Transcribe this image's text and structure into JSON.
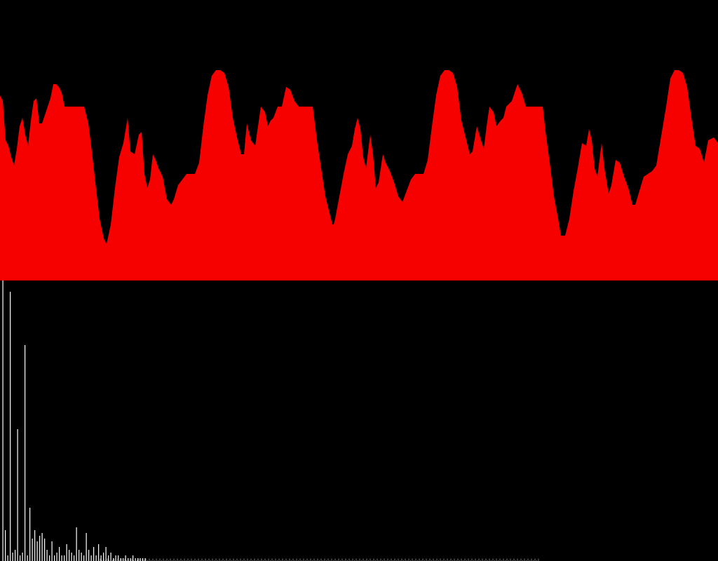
{
  "colors": {
    "background": "#000000",
    "waveform_fill": "#f70000",
    "spectrum_bars": "#ffffff"
  },
  "chart_data": [
    {
      "type": "area",
      "ylim": [
        0,
        1
      ],
      "grid": false,
      "points": [
        [
          0,
          0.66
        ],
        [
          4,
          0.64
        ],
        [
          8,
          0.5
        ],
        [
          12,
          0.48
        ],
        [
          16,
          0.44
        ],
        [
          20,
          0.41
        ],
        [
          24,
          0.47
        ],
        [
          28,
          0.55
        ],
        [
          32,
          0.58
        ],
        [
          36,
          0.52
        ],
        [
          40,
          0.48
        ],
        [
          44,
          0.57
        ],
        [
          48,
          0.64
        ],
        [
          52,
          0.65
        ],
        [
          56,
          0.56
        ],
        [
          60,
          0.56
        ],
        [
          64,
          0.59
        ],
        [
          68,
          0.62
        ],
        [
          72,
          0.65
        ],
        [
          76,
          0.7
        ],
        [
          80,
          0.7
        ],
        [
          84,
          0.69
        ],
        [
          88,
          0.67
        ],
        [
          92,
          0.62
        ],
        [
          100,
          0.62
        ],
        [
          110,
          0.62
        ],
        [
          120,
          0.62
        ],
        [
          126,
          0.56
        ],
        [
          130,
          0.48
        ],
        [
          136,
          0.35
        ],
        [
          142,
          0.22
        ],
        [
          148,
          0.15
        ],
        [
          152,
          0.13
        ],
        [
          158,
          0.2
        ],
        [
          164,
          0.33
        ],
        [
          170,
          0.44
        ],
        [
          176,
          0.49
        ],
        [
          182,
          0.58
        ],
        [
          186,
          0.46
        ],
        [
          192,
          0.45
        ],
        [
          198,
          0.52
        ],
        [
          202,
          0.53
        ],
        [
          206,
          0.38
        ],
        [
          210,
          0.33
        ],
        [
          214,
          0.36
        ],
        [
          218,
          0.45
        ],
        [
          222,
          0.43
        ],
        [
          226,
          0.4
        ],
        [
          232,
          0.37
        ],
        [
          238,
          0.29
        ],
        [
          244,
          0.27
        ],
        [
          248,
          0.29
        ],
        [
          254,
          0.34
        ],
        [
          260,
          0.36
        ],
        [
          266,
          0.38
        ],
        [
          272,
          0.38
        ],
        [
          278,
          0.38
        ],
        [
          284,
          0.42
        ],
        [
          290,
          0.55
        ],
        [
          296,
          0.66
        ],
        [
          302,
          0.73
        ],
        [
          308,
          0.75
        ],
        [
          314,
          0.75
        ],
        [
          320,
          0.74
        ],
        [
          326,
          0.69
        ],
        [
          332,
          0.58
        ],
        [
          338,
          0.51
        ],
        [
          344,
          0.45
        ],
        [
          348,
          0.45
        ],
        [
          352,
          0.56
        ],
        [
          358,
          0.5
        ],
        [
          364,
          0.48
        ],
        [
          368,
          0.55
        ],
        [
          372,
          0.62
        ],
        [
          378,
          0.6
        ],
        [
          382,
          0.55
        ],
        [
          386,
          0.57
        ],
        [
          390,
          0.58
        ],
        [
          396,
          0.62
        ],
        [
          402,
          0.62
        ],
        [
          408,
          0.69
        ],
        [
          414,
          0.68
        ],
        [
          420,
          0.64
        ],
        [
          426,
          0.62
        ],
        [
          436,
          0.62
        ],
        [
          446,
          0.62
        ],
        [
          452,
          0.5
        ],
        [
          458,
          0.4
        ],
        [
          464,
          0.3
        ],
        [
          470,
          0.24
        ],
        [
          474,
          0.2
        ],
        [
          476,
          0.2
        ],
        [
          478,
          0.22
        ],
        [
          484,
          0.3
        ],
        [
          490,
          0.38
        ],
        [
          496,
          0.45
        ],
        [
          502,
          0.48
        ],
        [
          506,
          0.54
        ],
        [
          510,
          0.58
        ],
        [
          514,
          0.54
        ],
        [
          518,
          0.44
        ],
        [
          522,
          0.4
        ],
        [
          528,
          0.52
        ],
        [
          532,
          0.45
        ],
        [
          536,
          0.33
        ],
        [
          540,
          0.35
        ],
        [
          546,
          0.45
        ],
        [
          550,
          0.42
        ],
        [
          556,
          0.39
        ],
        [
          562,
          0.35
        ],
        [
          568,
          0.3
        ],
        [
          574,
          0.28
        ],
        [
          580,
          0.32
        ],
        [
          586,
          0.36
        ],
        [
          592,
          0.38
        ],
        [
          598,
          0.38
        ],
        [
          604,
          0.38
        ],
        [
          610,
          0.43
        ],
        [
          616,
          0.55
        ],
        [
          622,
          0.66
        ],
        [
          628,
          0.73
        ],
        [
          634,
          0.75
        ],
        [
          640,
          0.75
        ],
        [
          646,
          0.74
        ],
        [
          652,
          0.69
        ],
        [
          658,
          0.57
        ],
        [
          664,
          0.51
        ],
        [
          670,
          0.45
        ],
        [
          674,
          0.46
        ],
        [
          680,
          0.55
        ],
        [
          686,
          0.5
        ],
        [
          690,
          0.47
        ],
        [
          694,
          0.55
        ],
        [
          698,
          0.62
        ],
        [
          704,
          0.6
        ],
        [
          708,
          0.55
        ],
        [
          714,
          0.57
        ],
        [
          718,
          0.58
        ],
        [
          722,
          0.62
        ],
        [
          730,
          0.64
        ],
        [
          738,
          0.7
        ],
        [
          744,
          0.67
        ],
        [
          750,
          0.62
        ],
        [
          762,
          0.62
        ],
        [
          774,
          0.62
        ],
        [
          778,
          0.53
        ],
        [
          784,
          0.42
        ],
        [
          790,
          0.3
        ],
        [
          796,
          0.22
        ],
        [
          800,
          0.16
        ],
        [
          806,
          0.16
        ],
        [
          812,
          0.22
        ],
        [
          818,
          0.32
        ],
        [
          824,
          0.4
        ],
        [
          830,
          0.49
        ],
        [
          836,
          0.48
        ],
        [
          840,
          0.54
        ],
        [
          844,
          0.5
        ],
        [
          848,
          0.4
        ],
        [
          852,
          0.37
        ],
        [
          858,
          0.49
        ],
        [
          862,
          0.4
        ],
        [
          868,
          0.31
        ],
        [
          872,
          0.34
        ],
        [
          878,
          0.43
        ],
        [
          884,
          0.42
        ],
        [
          890,
          0.37
        ],
        [
          896,
          0.33
        ],
        [
          902,
          0.27
        ],
        [
          906,
          0.27
        ],
        [
          912,
          0.32
        ],
        [
          918,
          0.37
        ],
        [
          924,
          0.38
        ],
        [
          930,
          0.39
        ],
        [
          936,
          0.41
        ],
        [
          942,
          0.5
        ],
        [
          950,
          0.62
        ],
        [
          956,
          0.72
        ],
        [
          962,
          0.75
        ],
        [
          968,
          0.75
        ],
        [
          974,
          0.74
        ],
        [
          980,
          0.69
        ],
        [
          986,
          0.58
        ],
        [
          992,
          0.48
        ],
        [
          998,
          0.47
        ],
        [
          1004,
          0.42
        ],
        [
          1010,
          0.5
        ],
        [
          1018,
          0.51
        ],
        [
          1024,
          0.49
        ]
      ]
    },
    {
      "type": "bar",
      "ylim": [
        0,
        1
      ],
      "grid": false,
      "series": [
        {
          "values": [
            0.0,
            1.0,
            0.11,
            0.02,
            0.96,
            0.03,
            0.04,
            0.47,
            0.02,
            0.03,
            0.77,
            0.02,
            0.19,
            0.08,
            0.11,
            0.07,
            0.09,
            0.1,
            0.08,
            0.04,
            0.02,
            0.07,
            0.02,
            0.03,
            0.05,
            0.02,
            0.02,
            0.06,
            0.04,
            0.03,
            0.02,
            0.12,
            0.04,
            0.03,
            0.02,
            0.1,
            0.04,
            0.02,
            0.05,
            0.02,
            0.06,
            0.02,
            0.03,
            0.05,
            0.02,
            0.03,
            0.01,
            0.02,
            0.02,
            0.01,
            0.01,
            0.02,
            0.01,
            0.01,
            0.02,
            0.01,
            0.01,
            0.01,
            0.01,
            0.01
          ]
        }
      ]
    }
  ]
}
